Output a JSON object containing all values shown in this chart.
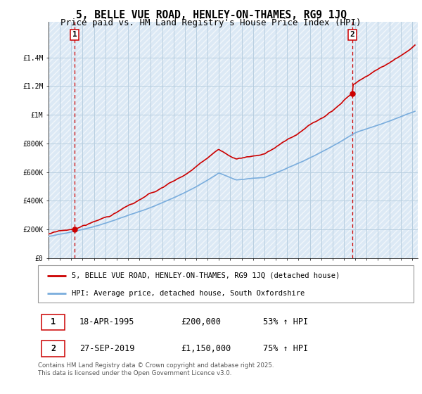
{
  "title": "5, BELLE VUE ROAD, HENLEY-ON-THAMES, RG9 1JQ",
  "subtitle": "Price paid vs. HM Land Registry's House Price Index (HPI)",
  "plot_bg_color": "#dce9f5",
  "grid_color": "#b8cfe0",
  "red_line_color": "#cc0000",
  "blue_line_color": "#7aaddd",
  "dashed_line_color": "#cc0000",
  "marker1_x": 1995.29,
  "marker1_y": 200000,
  "marker2_x": 2019.74,
  "marker2_y": 1150000,
  "ylabel_items": [
    "£0",
    "£200K",
    "£400K",
    "£600K",
    "£800K",
    "£1M",
    "£1.2M",
    "£1.4M"
  ],
  "ylim": [
    0,
    1650000
  ],
  "xlim_start": 1993.0,
  "xlim_end": 2025.5,
  "legend_line1": "5, BELLE VUE ROAD, HENLEY-ON-THAMES, RG9 1JQ (detached house)",
  "legend_line2": "HPI: Average price, detached house, South Oxfordshire",
  "table_row1": [
    "1",
    "18-APR-1995",
    "£200,000",
    "53% ↑ HPI"
  ],
  "table_row2": [
    "2",
    "27-SEP-2019",
    "£1,150,000",
    "75% ↑ HPI"
  ],
  "footer": "Contains HM Land Registry data © Crown copyright and database right 2025.\nThis data is licensed under the Open Government Licence v3.0.",
  "title_fontsize": 10.5,
  "subtitle_fontsize": 9,
  "tick_fontsize": 7
}
